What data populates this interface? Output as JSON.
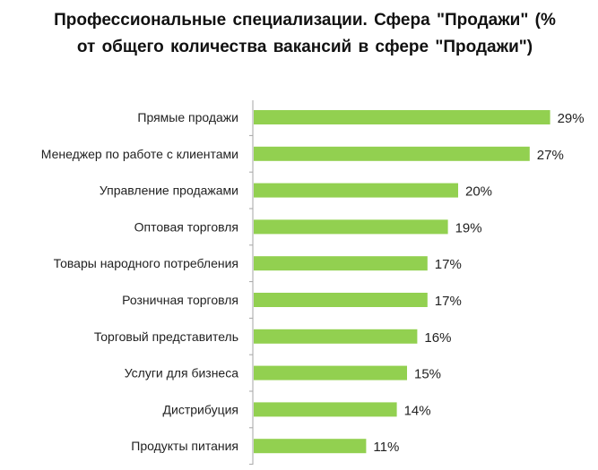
{
  "chart_data": {
    "type": "bar",
    "orientation": "horizontal",
    "title": "Профессиональные специализации. Сфера \"Продажи\" (% от общего количества вакансий в сфере \"Продажи\")",
    "categories": [
      "Прямые продажи",
      "Менеджер по работе с клиентами",
      "Управление продажами",
      "Оптовая торговля",
      "Товары народного потребления",
      "Розничная торговля",
      "Торговый представитель",
      "Услуги для бизнеса",
      "Дистрибуция",
      "Продукты питания"
    ],
    "values": [
      29,
      27,
      20,
      19,
      17,
      17,
      16,
      15,
      14,
      11
    ],
    "labels": [
      "29%",
      "27%",
      "20%",
      "19%",
      "17%",
      "17%",
      "16%",
      "15%",
      "14%",
      "11%"
    ],
    "xlabel": "",
    "ylabel": "",
    "xlim": [
      0,
      30
    ],
    "grid": false,
    "legend": "none",
    "color": "#92d050"
  }
}
